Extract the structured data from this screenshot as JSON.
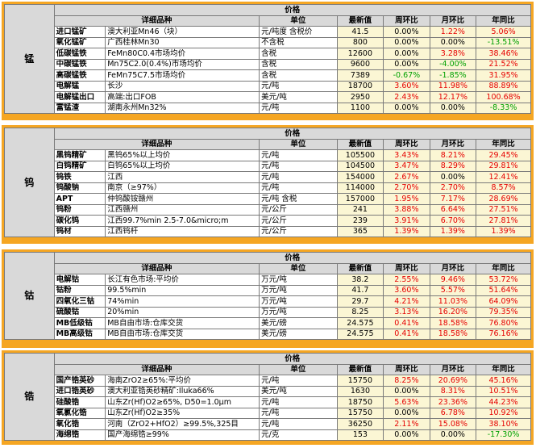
{
  "header_labels": {
    "price": "价格",
    "name": "详细品种",
    "unit": "单位",
    "latest": "最新值",
    "day": "周环比",
    "month": "月环比",
    "year": "年同比"
  },
  "sections": [
    {
      "label": "锰",
      "rows": [
        {
          "name": "进口锰矿",
          "spec": "澳大利亚Mn46（块）",
          "unit": "元/吨度 含税价",
          "value": "41.5",
          "day": "0.00%",
          "month": "1.22%",
          "year": "5.06%",
          "day_c": "black",
          "month_c": "red",
          "year_c": "red"
        },
        {
          "name": "氧化锰矿",
          "spec": "广西桂林Mn30",
          "unit": "不含税",
          "value": "800",
          "day": "0.00%",
          "month": "0.00%",
          "year": "-13.51%",
          "day_c": "black",
          "month_c": "black",
          "year_c": "green"
        },
        {
          "name": "低碳锰铁",
          "spec": "FeMn80C0.4市场均价",
          "unit": "含税",
          "value": "12600",
          "day": "0.00%",
          "month": "3.28%",
          "year": "38.46%",
          "day_c": "black",
          "month_c": "red",
          "year_c": "red"
        },
        {
          "name": "中碳锰铁",
          "spec": "Mn75C2.0(0.4%)市场均价",
          "unit": "含税",
          "value": "9600",
          "day": "0.00%",
          "month": "-4.00%",
          "year": "21.52%",
          "day_c": "black",
          "month_c": "green",
          "year_c": "red"
        },
        {
          "name": "高碳锰铁",
          "spec": "FeMn75C7.5市场均价",
          "unit": "含税",
          "value": "7389",
          "day": "-0.67%",
          "month": "-1.85%",
          "year": "31.95%",
          "day_c": "green",
          "month_c": "green",
          "year_c": "red"
        },
        {
          "name": "电解锰",
          "spec": "长沙",
          "unit": "元/吨",
          "value": "18700",
          "day": "3.60%",
          "month": "11.98%",
          "year": "88.89%",
          "day_c": "red",
          "month_c": "red",
          "year_c": "red"
        },
        {
          "name": "电解锰出口",
          "spec": "高端:出口FOB",
          "unit": "美元/吨",
          "value": "2950",
          "day": "2.43%",
          "month": "12.17%",
          "year": "100.68%",
          "day_c": "red",
          "month_c": "red",
          "year_c": "red"
        },
        {
          "name": "富锰渣",
          "spec": "湖南永州Mn32%",
          "unit": "元/吨",
          "value": "1100",
          "day": "0.00%",
          "month": "0.00%",
          "year": "-8.33%",
          "day_c": "black",
          "month_c": "black",
          "year_c": "green"
        }
      ]
    },
    {
      "label": "钨",
      "rows": [
        {
          "name": "黑钨精矿",
          "spec": "黑钨65%以上均价",
          "unit": "元/吨",
          "value": "105500",
          "day": "3.43%",
          "month": "8.21%",
          "year": "29.45%",
          "day_c": "red",
          "month_c": "red",
          "year_c": "red"
        },
        {
          "name": "白钨精矿",
          "spec": "白钨65%以上均价",
          "unit": "元/吨",
          "value": "104500",
          "day": "3.47%",
          "month": "8.29%",
          "year": "29.81%",
          "day_c": "red",
          "month_c": "red",
          "year_c": "red"
        },
        {
          "name": "钨铁",
          "spec": "江西",
          "unit": "元/吨",
          "value": "154000",
          "day": "2.67%",
          "month": "0.00%",
          "year": "12.41%",
          "day_c": "red",
          "month_c": "black",
          "year_c": "red"
        },
        {
          "name": "钨酸钠",
          "spec": "南京（≥97%）",
          "unit": "元/吨",
          "value": "114000",
          "day": "2.70%",
          "month": "2.70%",
          "year": "8.57%",
          "day_c": "red",
          "month_c": "red",
          "year_c": "red"
        },
        {
          "name": "APT",
          "spec": "仲钨酸铵赣州",
          "unit": "元/吨 含税",
          "value": "157000",
          "day": "1.95%",
          "month": "7.17%",
          "year": "28.69%",
          "day_c": "red",
          "month_c": "red",
          "year_c": "red"
        },
        {
          "name": "钨粉",
          "spec": "江西赣州",
          "unit": "元/公斤",
          "value": "241",
          "day": "3.88%",
          "month": "6.64%",
          "year": "27.51%",
          "day_c": "red",
          "month_c": "red",
          "year_c": "red"
        },
        {
          "name": "碳化钨",
          "spec": "江西99.7%min 2.5-7.0&micro;m",
          "unit": "元/公斤",
          "value": "239",
          "day": "3.91%",
          "month": "6.70%",
          "year": "27.81%",
          "day_c": "red",
          "month_c": "red",
          "year_c": "red"
        },
        {
          "name": "钨材",
          "spec": "江西钨杆",
          "unit": "元/公斤",
          "value": "365",
          "day": "1.39%",
          "month": "1.39%",
          "year": "1.39%",
          "day_c": "red",
          "month_c": "red",
          "year_c": "red"
        }
      ]
    },
    {
      "label": "钴",
      "rows": [
        {
          "name": "电解钴",
          "spec": "长江有色市场:平均价",
          "unit": "万元/吨",
          "value": "38.2",
          "day": "2.55%",
          "month": "9.46%",
          "year": "53.72%",
          "day_c": "red",
          "month_c": "red",
          "year_c": "red"
        },
        {
          "name": "钴粉",
          "spec": "99.5%min",
          "unit": "万元/吨",
          "value": "41.7",
          "day": "3.60%",
          "month": "5.57%",
          "year": "51.64%",
          "day_c": "red",
          "month_c": "red",
          "year_c": "red"
        },
        {
          "name": "四氧化三钴",
          "spec": "74%min",
          "unit": "万元/吨",
          "value": "29.7",
          "day": "4.21%",
          "month": "11.03%",
          "year": "64.09%",
          "day_c": "red",
          "month_c": "red",
          "year_c": "red"
        },
        {
          "name": "硫酸钴",
          "spec": "20%min",
          "unit": "万元/吨",
          "value": "8.25",
          "day": "3.13%",
          "month": "16.20%",
          "year": "79.35%",
          "day_c": "red",
          "month_c": "red",
          "year_c": "red"
        },
        {
          "name": "MB低级钴",
          "spec": "MB自由市场:仓库交货",
          "unit": "美元/磅",
          "value": "24.575",
          "day": "0.41%",
          "month": "18.58%",
          "year": "76.80%",
          "day_c": "red",
          "month_c": "red",
          "year_c": "red"
        },
        {
          "name": "MB高级钴",
          "spec": "MB自由市场:仓库交货",
          "unit": "美元/磅",
          "value": "24.575",
          "day": "0.41%",
          "month": "18.58%",
          "year": "76.16%",
          "day_c": "red",
          "month_c": "red",
          "year_c": "red"
        }
      ]
    },
    {
      "label": "锆",
      "rows": [
        {
          "name": "国产锆英砂",
          "spec": "海南ZrO2≥65%:平均价",
          "unit": "元/吨",
          "value": "15750",
          "day": "8.25%",
          "month": "20.69%",
          "year": "45.16%",
          "day_c": "red",
          "month_c": "red",
          "year_c": "red"
        },
        {
          "name": "进口锆英砂",
          "spec": "澳大利亚锆英砂精矿:Iluka66%",
          "unit": "美元/吨",
          "value": "1630",
          "day": "0.00%",
          "month": "8.31%",
          "year": "10.51%",
          "day_c": "black",
          "month_c": "red",
          "year_c": "red"
        },
        {
          "name": "硅酸锆",
          "spec": "山东Zr(Hf)O2≥65%, D50=1.0μm",
          "unit": "元/吨",
          "value": "18750",
          "day": "5.63%",
          "month": "23.36%",
          "year": "44.23%",
          "day_c": "red",
          "month_c": "red",
          "year_c": "red"
        },
        {
          "name": "氧氯化锆",
          "spec": "山东Zr(Hf)O2≥35%",
          "unit": "元/吨",
          "value": "15750",
          "day": "0.00%",
          "month": "6.78%",
          "year": "10.92%",
          "day_c": "black",
          "month_c": "red",
          "year_c": "red"
        },
        {
          "name": "氧化锆",
          "spec": "河南（ZrO2+HfO2）≥99.5%,325目",
          "unit": "元/吨",
          "value": "36250",
          "day": "2.11%",
          "month": "15.08%",
          "year": "38.10%",
          "day_c": "red",
          "month_c": "red",
          "year_c": "red"
        },
        {
          "name": "海绵锆",
          "spec": "国产海绵锆≥99%",
          "unit": "元/克",
          "value": "153",
          "day": "0.00%",
          "month": "0.00%",
          "year": "-17.30%",
          "day_c": "black",
          "month_c": "black",
          "year_c": "green"
        }
      ]
    }
  ]
}
